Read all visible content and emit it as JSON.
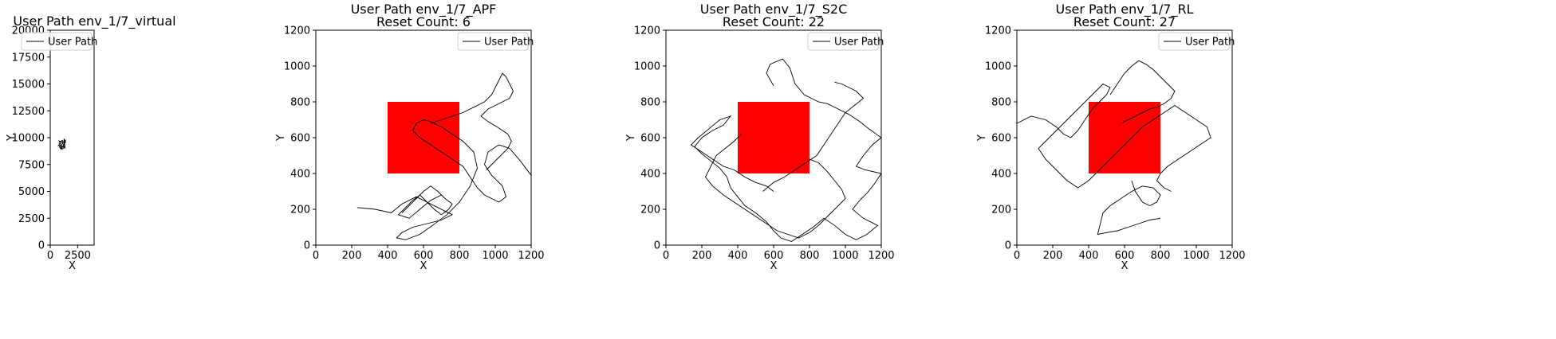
{
  "chart_data": [
    {
      "type": "line",
      "title": "User Path env_1/7_virtual",
      "xlabel": "X",
      "ylabel": "Y",
      "xlim": [
        0,
        4000
      ],
      "ylim": [
        0,
        20000
      ],
      "xticks": [
        0,
        2500
      ],
      "yticks": [
        0,
        2500,
        5000,
        7500,
        10000,
        12500,
        15000,
        17500,
        20000
      ],
      "legend": "top-left",
      "series": [
        {
          "name": "User Path",
          "color": "#000000",
          "x": [
            700,
            900,
            1000,
            1150,
            1300,
            1250,
            1400,
            1200,
            1350,
            1150,
            1000,
            850,
            950,
            800,
            1050,
            1250,
            1400,
            1300,
            1150,
            950,
            800,
            900,
            1100,
            1300,
            1350,
            1100,
            900
          ],
          "y": [
            9200,
            9500,
            9100,
            9700,
            9400,
            9900,
            9600,
            9300,
            9000,
            9200,
            8900,
            9100,
            9400,
            9700,
            9600,
            9300,
            9800,
            9500,
            9200,
            9000,
            9300,
            9600,
            9750,
            9450,
            9150,
            8950,
            9050
          ]
        }
      ]
    },
    {
      "type": "line",
      "title": "User Path env_1/7_APF",
      "subtitle": "Reset Count: 6",
      "xlabel": "X",
      "ylabel": "Y",
      "xlim": [
        0,
        1200
      ],
      "ylim": [
        0,
        1200
      ],
      "xticks": [
        0,
        200,
        400,
        600,
        800,
        1000,
        1200
      ],
      "yticks": [
        0,
        200,
        400,
        600,
        800,
        1000,
        1200
      ],
      "legend": "top-right",
      "obstacle": {
        "x0": 400,
        "y0": 400,
        "x1": 800,
        "y1": 800,
        "color": "#ff0000"
      },
      "series": [
        {
          "name": "User Path",
          "color": "#000000",
          "x": [
            230,
            330,
            420,
            480,
            560,
            620,
            680,
            720,
            760,
            700,
            620,
            540,
            480,
            450,
            500,
            580,
            650,
            730,
            800,
            860,
            900,
            880,
            820,
            760,
            700,
            640,
            600,
            560,
            540,
            580,
            640,
            700,
            760,
            820,
            860,
            900,
            940,
            980,
            1020,
            1060,
            1040,
            980,
            940,
            960,
            1020,
            1080,
            1140,
            1200
          ],
          "y": [
            210,
            200,
            180,
            230,
            270,
            240,
            210,
            190,
            170,
            140,
            120,
            100,
            70,
            40,
            30,
            60,
            110,
            170,
            240,
            330,
            430,
            520,
            580,
            620,
            660,
            690,
            700,
            680,
            640,
            600,
            560,
            520,
            480,
            440,
            380,
            320,
            280,
            260,
            240,
            270,
            330,
            390,
            450,
            520,
            560,
            540,
            470,
            390
          ]
        },
        {
          "name": "",
          "color": "#000000",
          "x": [
            640,
            700,
            760,
            820,
            880,
            940,
            980,
            1000,
            1020,
            1040,
            1060,
            1080,
            1100,
            1080,
            1040,
            1000,
            960,
            920,
            960,
            1010,
            1040,
            1070,
            1090,
            1070,
            1030,
            990,
            950
          ],
          "y": [
            680,
            700,
            720,
            740,
            770,
            800,
            840,
            880,
            920,
            960,
            940,
            900,
            860,
            820,
            800,
            780,
            760,
            720,
            690,
            660,
            640,
            620,
            580,
            540,
            500,
            460,
            420
          ]
        },
        {
          "name": "",
          "color": "#000000",
          "x": [
            480,
            520,
            560,
            600,
            640,
            680,
            720,
            760,
            740,
            700,
            660,
            620,
            580,
            540,
            500,
            460,
            520,
            580,
            640,
            700
          ],
          "y": [
            180,
            220,
            260,
            300,
            330,
            300,
            260,
            230,
            200,
            170,
            200,
            240,
            280,
            250,
            210,
            170,
            150,
            200,
            250,
            280
          ]
        }
      ]
    },
    {
      "type": "line",
      "title": "User Path env_1/7_S2C",
      "subtitle": "Reset Count: 22",
      "xlabel": "X",
      "ylabel": "Y",
      "xlim": [
        0,
        1200
      ],
      "ylim": [
        0,
        1200
      ],
      "xticks": [
        0,
        200,
        400,
        600,
        800,
        1000,
        1200
      ],
      "yticks": [
        0,
        200,
        400,
        600,
        800,
        1000,
        1200
      ],
      "legend": "top-right",
      "obstacle": {
        "x0": 400,
        "y0": 400,
        "x1": 800,
        "y1": 800,
        "color": "#ff0000"
      },
      "series": [
        {
          "name": "User Path",
          "color": "#000000",
          "x": [
            600,
            560,
            580,
            650,
            690,
            720,
            770,
            850,
            900,
            960,
            1020,
            1080,
            1130,
            1200,
            1150,
            1100,
            1060,
            1110,
            1200,
            1160,
            1120,
            1080,
            1040,
            1100,
            1180,
            1120,
            1060,
            1000,
            940,
            880,
            820,
            760,
            700,
            640,
            600,
            560,
            500,
            440,
            400,
            360,
            340,
            300,
            250,
            200,
            160,
            200,
            260,
            320,
            360,
            300,
            240,
            180,
            140,
            200,
            260,
            320,
            380,
            440,
            500,
            560,
            600
          ],
          "y": [
            890,
            960,
            1010,
            1040,
            990,
            900,
            840,
            800,
            790,
            760,
            730,
            690,
            650,
            600,
            560,
            500,
            440,
            420,
            400,
            340,
            290,
            250,
            200,
            150,
            110,
            60,
            30,
            60,
            110,
            150,
            100,
            60,
            20,
            40,
            80,
            130,
            180,
            220,
            270,
            320,
            380,
            430,
            470,
            510,
            550,
            600,
            640,
            670,
            720,
            700,
            650,
            600,
            560,
            520,
            480,
            440,
            420,
            380,
            350,
            330,
            300
          ]
        },
        {
          "name": "",
          "color": "#000000",
          "x": [
            420,
            380,
            330,
            280,
            250,
            220,
            260,
            320,
            380,
            440,
            500,
            560,
            620,
            680,
            740,
            800,
            850,
            900,
            950,
            1000,
            980,
            940,
            900,
            850,
            800
          ],
          "y": [
            620,
            580,
            540,
            500,
            440,
            380,
            330,
            280,
            240,
            200,
            160,
            120,
            80,
            60,
            40,
            70,
            110,
            160,
            210,
            260,
            310,
            360,
            410,
            460,
            480
          ]
        },
        {
          "name": "",
          "color": "#000000",
          "x": [
            540,
            600,
            660,
            720,
            780,
            840,
            880,
            920,
            960,
            1000,
            1050,
            1100,
            1060,
            1020,
            980,
            940
          ],
          "y": [
            300,
            350,
            380,
            420,
            460,
            500,
            560,
            620,
            680,
            740,
            780,
            820,
            860,
            880,
            900,
            910
          ]
        }
      ]
    },
    {
      "type": "line",
      "title": "User Path env_1/7_RL",
      "subtitle": "Reset Count: 27",
      "xlabel": "X",
      "ylabel": "Y",
      "xlim": [
        0,
        1200
      ],
      "ylim": [
        0,
        1200
      ],
      "xticks": [
        0,
        200,
        400,
        600,
        800,
        1000,
        1200
      ],
      "yticks": [
        0,
        200,
        400,
        600,
        800,
        1000,
        1200
      ],
      "legend": "top-right",
      "obstacle": {
        "x0": 400,
        "y0": 400,
        "x1": 800,
        "y1": 800,
        "color": "#ff0000"
      },
      "series": [
        {
          "name": "User Path",
          "color": "#000000",
          "x": [
            0,
            80,
            160,
            220,
            260,
            300,
            340,
            380,
            420,
            460,
            500,
            520,
            480,
            440,
            400,
            360,
            320,
            280,
            240,
            200,
            160,
            120,
            160,
            220,
            280,
            340,
            400,
            460,
            520,
            580,
            640,
            700,
            760,
            820,
            880,
            940,
            1000,
            1060,
            1080,
            1020,
            960,
            900,
            840,
            800,
            780,
            820,
            860
          ],
          "y": [
            680,
            720,
            700,
            660,
            620,
            600,
            640,
            700,
            760,
            800,
            840,
            880,
            900,
            860,
            820,
            780,
            740,
            700,
            660,
            620,
            580,
            540,
            480,
            420,
            360,
            320,
            360,
            420,
            480,
            540,
            600,
            660,
            700,
            740,
            780,
            740,
            700,
            660,
            600,
            560,
            520,
            480,
            440,
            400,
            360,
            320,
            300
          ]
        },
        {
          "name": "",
          "color": "#000000",
          "x": [
            520,
            560,
            600,
            640,
            680,
            720,
            760,
            800,
            840,
            880,
            860,
            820,
            780,
            740,
            700,
            660,
            620,
            580
          ],
          "y": [
            840,
            900,
            960,
            1000,
            1030,
            1010,
            980,
            940,
            900,
            860,
            820,
            790,
            770,
            760,
            740,
            720,
            700,
            680
          ]
        },
        {
          "name": "",
          "color": "#000000",
          "x": [
            640,
            660,
            700,
            740,
            780,
            800,
            760,
            700,
            640,
            580,
            520,
            480,
            450,
            500,
            560,
            620,
            680,
            740,
            800
          ],
          "y": [
            360,
            300,
            240,
            220,
            240,
            280,
            320,
            330,
            300,
            260,
            220,
            180,
            60,
            70,
            80,
            100,
            120,
            140,
            150
          ]
        }
      ]
    }
  ]
}
